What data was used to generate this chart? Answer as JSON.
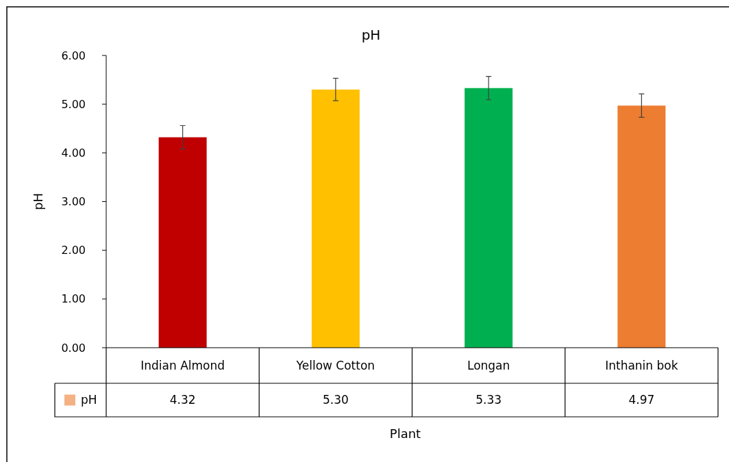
{
  "chart_data": {
    "type": "bar",
    "title": "pH",
    "xlabel": "Plant",
    "ylabel": "pH",
    "categories": [
      "Indian Almond",
      "Yellow Cotton",
      "Longan",
      "Inthanin bok"
    ],
    "series": [
      {
        "name": "pH",
        "color": "#f4b183",
        "colors": [
          "#c00000",
          "#ffc000",
          "#00b050",
          "#ed7d31"
        ],
        "values": [
          4.32,
          5.3,
          5.33,
          4.97
        ],
        "errors": [
          0.24,
          0.23,
          0.24,
          0.24
        ]
      }
    ],
    "ylim": [
      0,
      6
    ],
    "yticks": [
      {
        "value": 0,
        "label": "0.00"
      },
      {
        "value": 1,
        "label": "1.00"
      },
      {
        "value": 2,
        "label": "2.00"
      },
      {
        "value": 3,
        "label": "3.00"
      },
      {
        "value": 4,
        "label": "4.00"
      },
      {
        "value": 5,
        "label": "5.00"
      },
      {
        "value": 6,
        "label": "6.00"
      }
    ],
    "value_labels": [
      "4.32",
      "5.30",
      "5.33",
      "4.97"
    ],
    "legend": "bottom",
    "grid": false
  }
}
